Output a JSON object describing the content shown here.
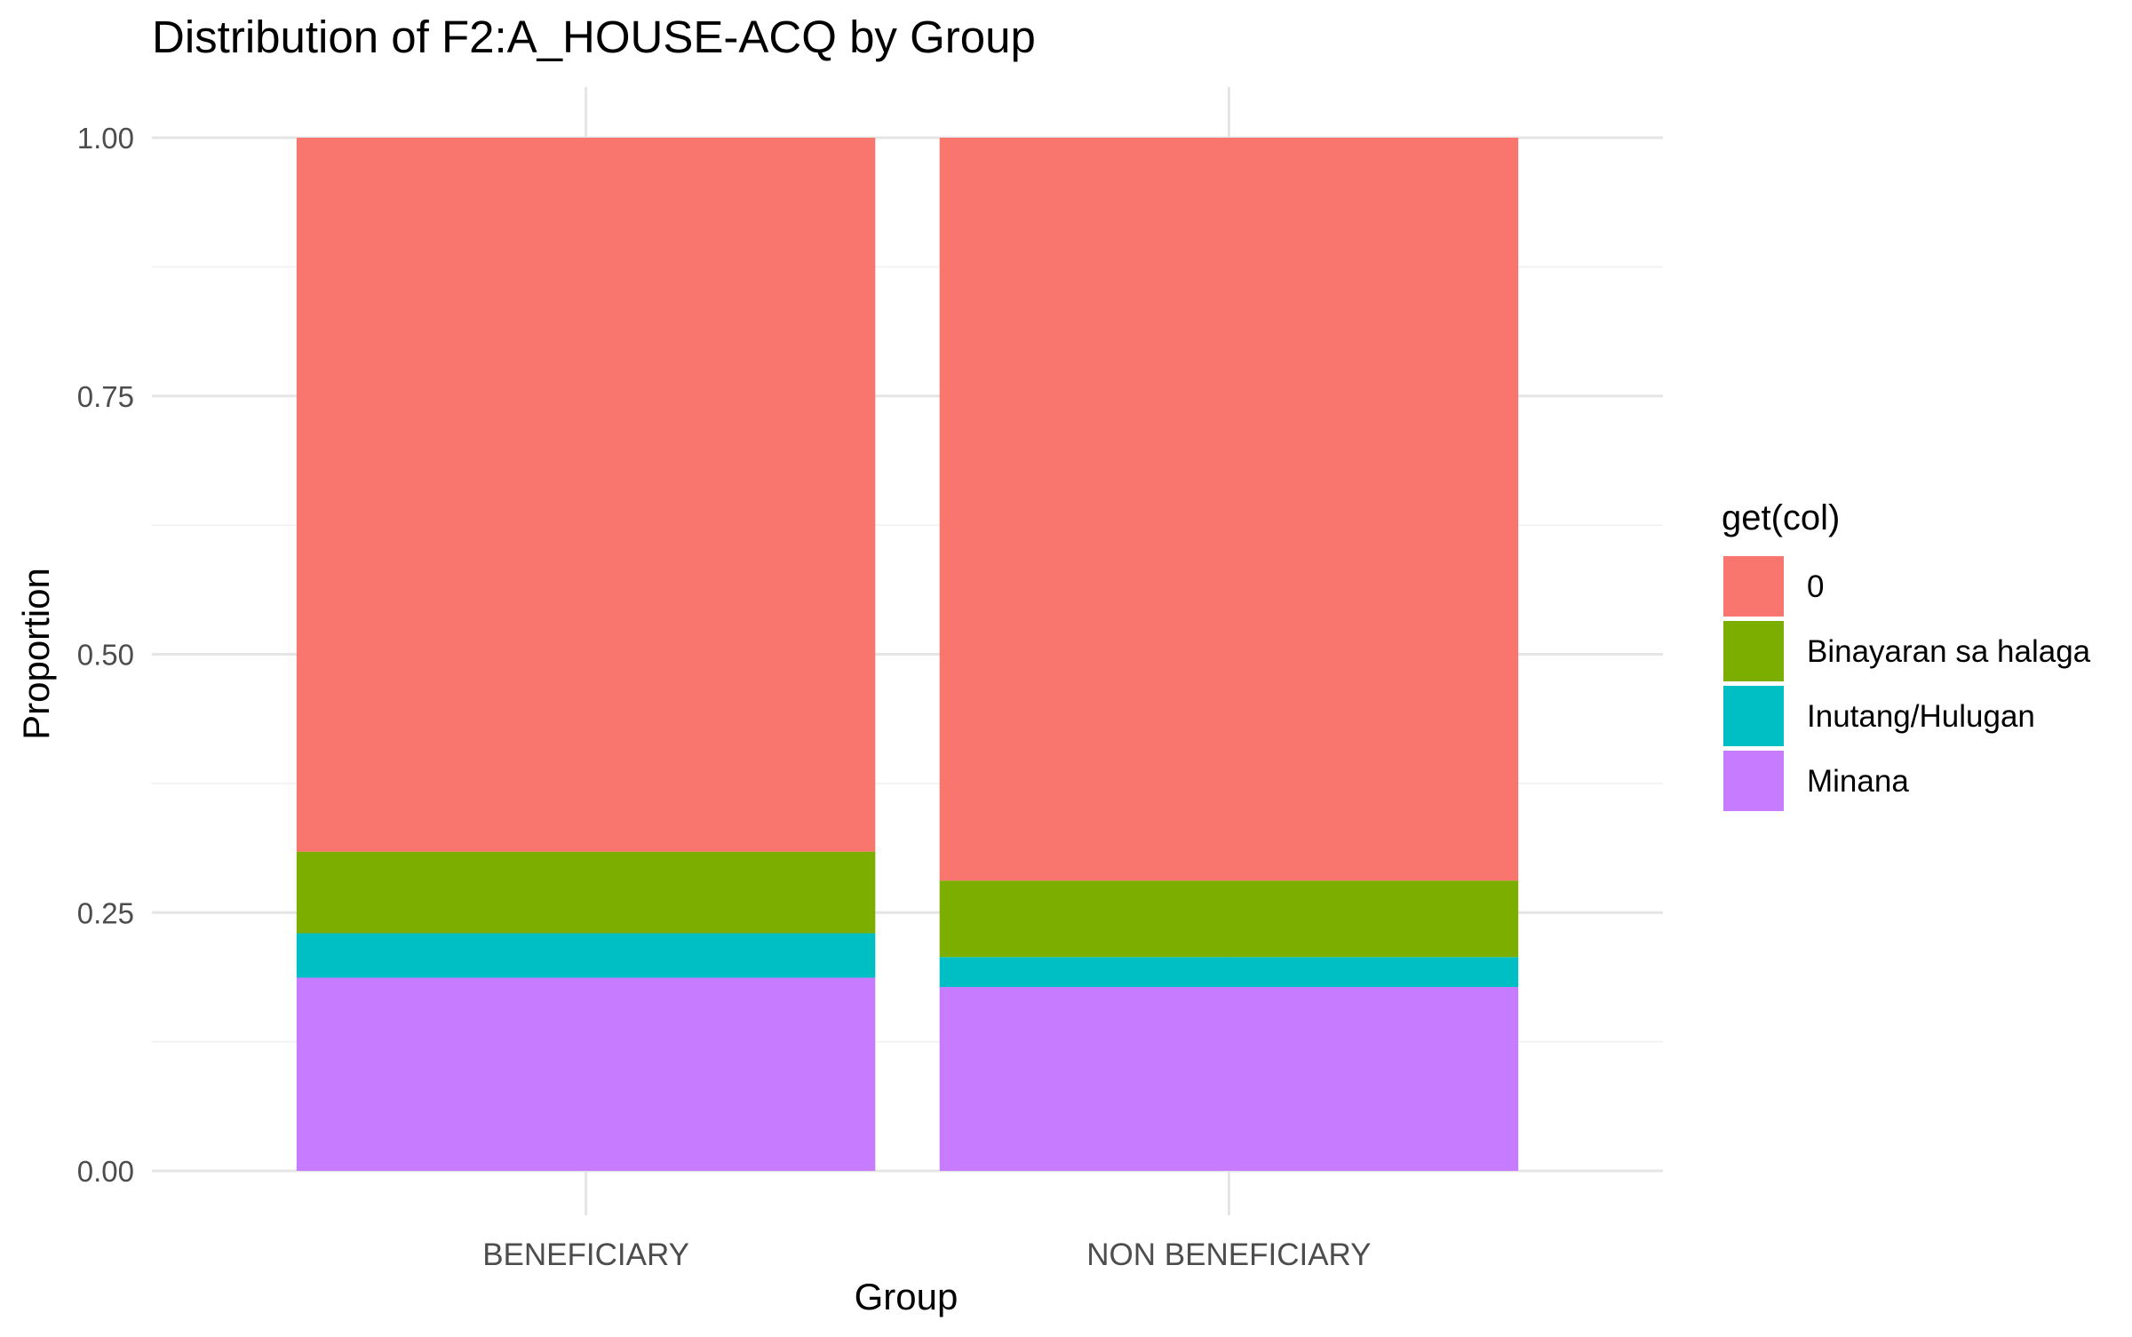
{
  "chart_data": {
    "type": "bar",
    "stacked": true,
    "title": "Distribution of F2:A_HOUSE-ACQ by Group",
    "xlabel": "Group",
    "ylabel": "Proportion",
    "ylim": [
      0,
      1
    ],
    "yticks": [
      0,
      0.25,
      0.5,
      0.75,
      1
    ],
    "ytick_labels": [
      "0.00",
      "0.25",
      "0.50",
      "0.75",
      "1.00"
    ],
    "categories": [
      "BENEFICIARY",
      "NON BENEFICIARY"
    ],
    "legend_title": "get(col)",
    "legend_position": "right",
    "grid": true,
    "series": [
      {
        "name": "Minana",
        "color": "#C77CFF",
        "values": [
          0.187,
          0.178
        ]
      },
      {
        "name": "Inutang/Hulugan",
        "color": "#00BFC4",
        "values": [
          0.043,
          0.029
        ]
      },
      {
        "name": "Binayaran sa halaga",
        "color": "#7CAE00",
        "values": [
          0.079,
          0.074
        ]
      },
      {
        "name": "0",
        "color": "#F8766D",
        "values": [
          0.691,
          0.719
        ]
      }
    ]
  }
}
